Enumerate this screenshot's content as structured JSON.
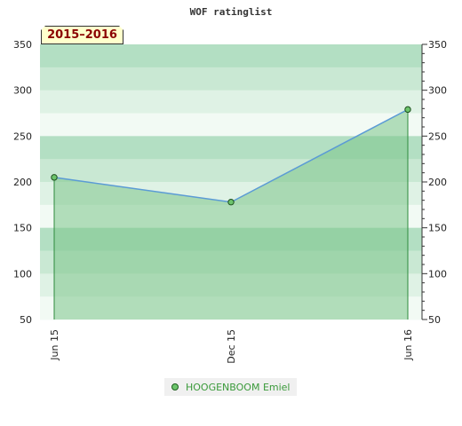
{
  "chart_data": {
    "type": "area",
    "title": "WOF ratinglist",
    "period_label": "2015–2016",
    "xlabel": "",
    "ylabel": "",
    "ylim": [
      50,
      350
    ],
    "y_ticks": [
      50,
      100,
      150,
      200,
      250,
      300,
      350
    ],
    "x_tick_labels": [
      "Jun 15",
      "Dec 15",
      "Jun 16"
    ],
    "series": [
      {
        "name": "HOOGENBOOM Emiel",
        "x": [
          "Jun 15",
          "Dec 15",
          "Jun 16"
        ],
        "values": [
          205,
          178,
          279
        ],
        "line_color": "#5b9bd5",
        "fill_color": "#7cc48a",
        "marker_color": "#6cc46c"
      }
    ],
    "background_bands": true,
    "legend_position": "bottom-center"
  }
}
